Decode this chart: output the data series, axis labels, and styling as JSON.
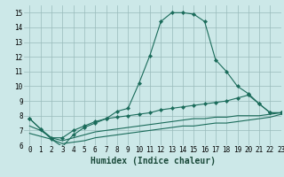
{
  "xlabel": "Humidex (Indice chaleur)",
  "bg_color": "#cce8e8",
  "line_color": "#1a6b5a",
  "grid_color": "#99bbbb",
  "xlim": [
    -0.5,
    23
  ],
  "ylim": [
    6,
    15.5
  ],
  "xticks": [
    0,
    1,
    2,
    3,
    4,
    5,
    6,
    7,
    8,
    9,
    10,
    11,
    12,
    13,
    14,
    15,
    16,
    17,
    18,
    19,
    20,
    21,
    22,
    23
  ],
  "yticks": [
    6,
    7,
    8,
    9,
    10,
    11,
    12,
    13,
    14,
    15
  ],
  "series1_x": [
    0,
    1,
    2,
    3,
    4,
    5,
    6,
    7,
    8,
    9,
    10,
    11,
    12,
    13,
    14,
    15,
    16,
    17,
    18,
    19,
    20,
    21,
    22,
    23
  ],
  "series1_y": [
    7.8,
    7.1,
    6.4,
    5.9,
    6.7,
    7.2,
    7.5,
    7.8,
    8.3,
    8.5,
    10.2,
    12.1,
    14.4,
    15.0,
    15.0,
    14.9,
    14.4,
    11.8,
    11.0,
    10.0,
    9.5,
    8.8,
    8.2,
    8.2
  ],
  "series2_x": [
    0,
    1,
    2,
    3,
    4,
    5,
    6,
    7,
    8,
    9,
    10,
    11,
    12,
    13,
    14,
    15,
    16,
    17,
    18,
    19,
    20,
    21,
    22,
    23
  ],
  "series2_y": [
    7.8,
    7.1,
    6.5,
    6.5,
    7.0,
    7.3,
    7.6,
    7.8,
    7.9,
    8.0,
    8.1,
    8.2,
    8.4,
    8.5,
    8.6,
    8.7,
    8.8,
    8.9,
    9.0,
    9.2,
    9.4,
    8.8,
    8.2,
    8.2
  ],
  "series3_x": [
    0,
    1,
    2,
    3,
    4,
    5,
    6,
    7,
    8,
    9,
    10,
    11,
    12,
    13,
    14,
    15,
    16,
    17,
    18,
    19,
    20,
    21,
    22,
    23
  ],
  "series3_y": [
    7.3,
    7.0,
    6.5,
    6.3,
    6.5,
    6.7,
    6.9,
    7.0,
    7.1,
    7.2,
    7.3,
    7.4,
    7.5,
    7.6,
    7.7,
    7.8,
    7.8,
    7.9,
    7.9,
    8.0,
    8.0,
    8.0,
    8.1,
    8.2
  ],
  "series4_x": [
    0,
    1,
    2,
    3,
    4,
    5,
    6,
    7,
    8,
    9,
    10,
    11,
    12,
    13,
    14,
    15,
    16,
    17,
    18,
    19,
    20,
    21,
    22,
    23
  ],
  "series4_y": [
    6.8,
    6.6,
    6.4,
    6.1,
    6.2,
    6.3,
    6.5,
    6.6,
    6.7,
    6.8,
    6.9,
    7.0,
    7.1,
    7.2,
    7.3,
    7.3,
    7.4,
    7.5,
    7.5,
    7.6,
    7.7,
    7.8,
    7.9,
    8.1
  ],
  "tick_fontsize": 5.5,
  "xlabel_fontsize": 7
}
